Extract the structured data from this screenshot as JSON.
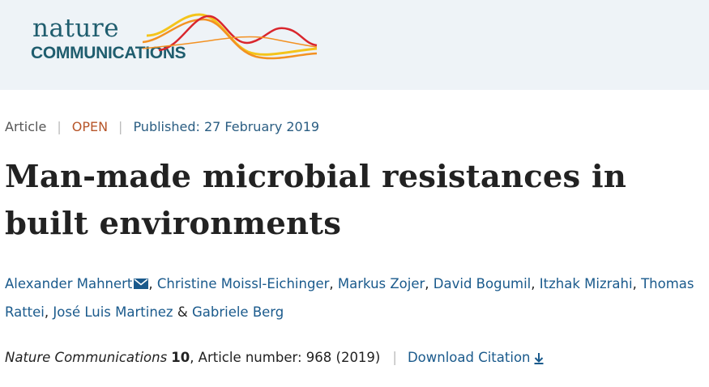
{
  "header": {
    "logo": {
      "line1": "nature",
      "line2": "COMMUNICATIONS",
      "colors": {
        "text": "#1f5d6e",
        "wave_red": "#d9262d",
        "wave_orange": "#f39122",
        "wave_yellow": "#f4c41b"
      }
    }
  },
  "article": {
    "type": "Article",
    "access": "OPEN",
    "published": "Published: 27 February 2019",
    "title": "Man-made microbial resistances in built environments",
    "authors": [
      {
        "name": "Alexander Mahnert",
        "sep": ", ",
        "corresponding": true
      },
      {
        "name": "Christine Moissl-Eichinger",
        "sep": ", "
      },
      {
        "name": "Markus Zojer",
        "sep": ", "
      },
      {
        "name": "David Bogumil",
        "sep": ", "
      },
      {
        "name": "Itzhak Mizrahi",
        "sep": ", "
      },
      {
        "name": "Thomas Rattei",
        "sep": ", "
      },
      {
        "name": "José Luis Martinez",
        "sep": " & "
      },
      {
        "name": "Gabriele Berg",
        "sep": ""
      }
    ],
    "citation": {
      "journal": "Nature Communications",
      "volume": "10",
      "details": ", Article number: 968 (2019)",
      "download_label": "Download Citation"
    }
  },
  "colors": {
    "link": "#1a5a8c",
    "open": "#b7562a",
    "header_bg": "#eef3f7"
  }
}
